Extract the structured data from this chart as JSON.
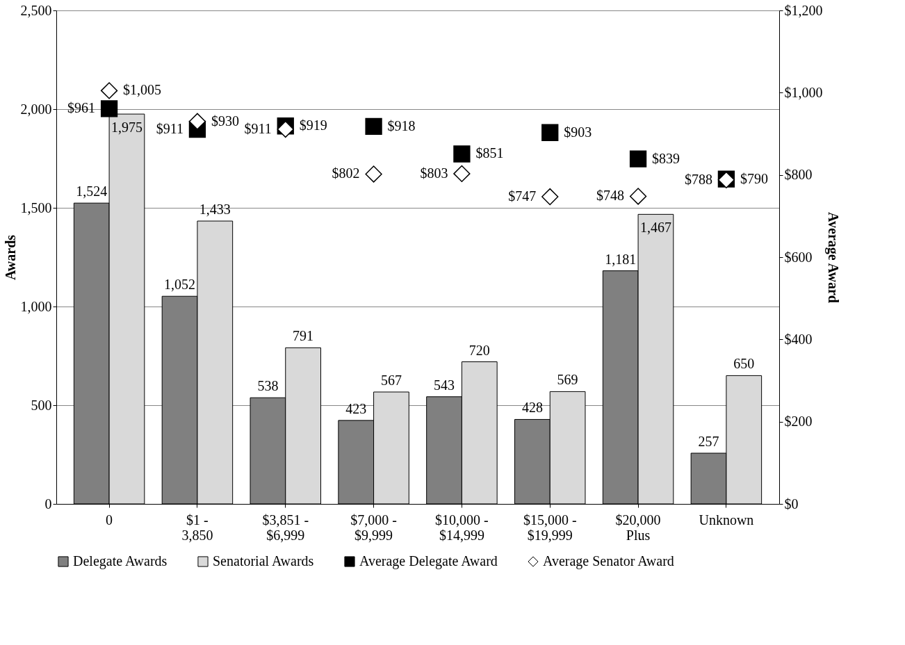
{
  "chart_data": {
    "type": "bar",
    "categories": [
      "0",
      "$1 -\n3,850",
      "$3,851 -\n$6,999",
      "$7,000 -\n$9,999",
      "$10,000 -\n$14,999",
      "$15,000 -\n$19,999",
      "$20,000\nPlus",
      "Unknown"
    ],
    "series": [
      {
        "name": "Delegate Awards",
        "color": "#808080",
        "values": [
          1524,
          1052,
          538,
          423,
          543,
          428,
          1181,
          257
        ],
        "value_labels": [
          "1,524",
          "1,052",
          "538",
          "423",
          "543",
          "428",
          "1,181",
          "257"
        ]
      },
      {
        "name": "Senatorial Awards",
        "color": "#d9d9d9",
        "values": [
          1975,
          1433,
          791,
          567,
          720,
          569,
          1467,
          650
        ],
        "value_labels": [
          "1,975",
          "1,433",
          "791",
          "567",
          "720",
          "569",
          "1,467",
          "650"
        ]
      },
      {
        "name": "Average Delegate Award",
        "type": "scatter",
        "axis": "y2",
        "marker": "square",
        "color": "#000000",
        "values": [
          961,
          911,
          919,
          918,
          851,
          903,
          839,
          790
        ],
        "value_labels": [
          "$961",
          "$911",
          "$919",
          "$918",
          "$851",
          "$903",
          "$839",
          "$790"
        ]
      },
      {
        "name": "Average Senator Award",
        "type": "scatter",
        "axis": "y2",
        "marker": "diamond",
        "color": "#ffffff",
        "values": [
          1005,
          930,
          911,
          802,
          803,
          747,
          748,
          788
        ],
        "value_labels": [
          "$1,005",
          "$930",
          "$911",
          "$802",
          "$803",
          "$747",
          "$748",
          "$788"
        ]
      }
    ],
    "ylabel": "Awards",
    "y2label": "Average Award",
    "ylim": [
      0,
      2500
    ],
    "yticks": [
      0,
      500,
      {
        "value": 1000,
        "label": "1,000"
      },
      {
        "value": 1500,
        "label": "1,500"
      },
      {
        "value": 2000,
        "label": "2,000"
      },
      {
        "value": 2500,
        "label": "2,500"
      }
    ],
    "y2lim": [
      0,
      1200
    ],
    "y2ticks": [
      {
        "value": 0,
        "label": "$0"
      },
      {
        "value": 200,
        "label": "$200"
      },
      {
        "value": 400,
        "label": "$400"
      },
      {
        "value": 600,
        "label": "$600"
      },
      {
        "value": 800,
        "label": "$800"
      },
      {
        "value": 1000,
        "label": "$1,000"
      },
      {
        "value": 1200,
        "label": "$1,200"
      }
    ],
    "grid": "y",
    "legend": "bottom"
  }
}
